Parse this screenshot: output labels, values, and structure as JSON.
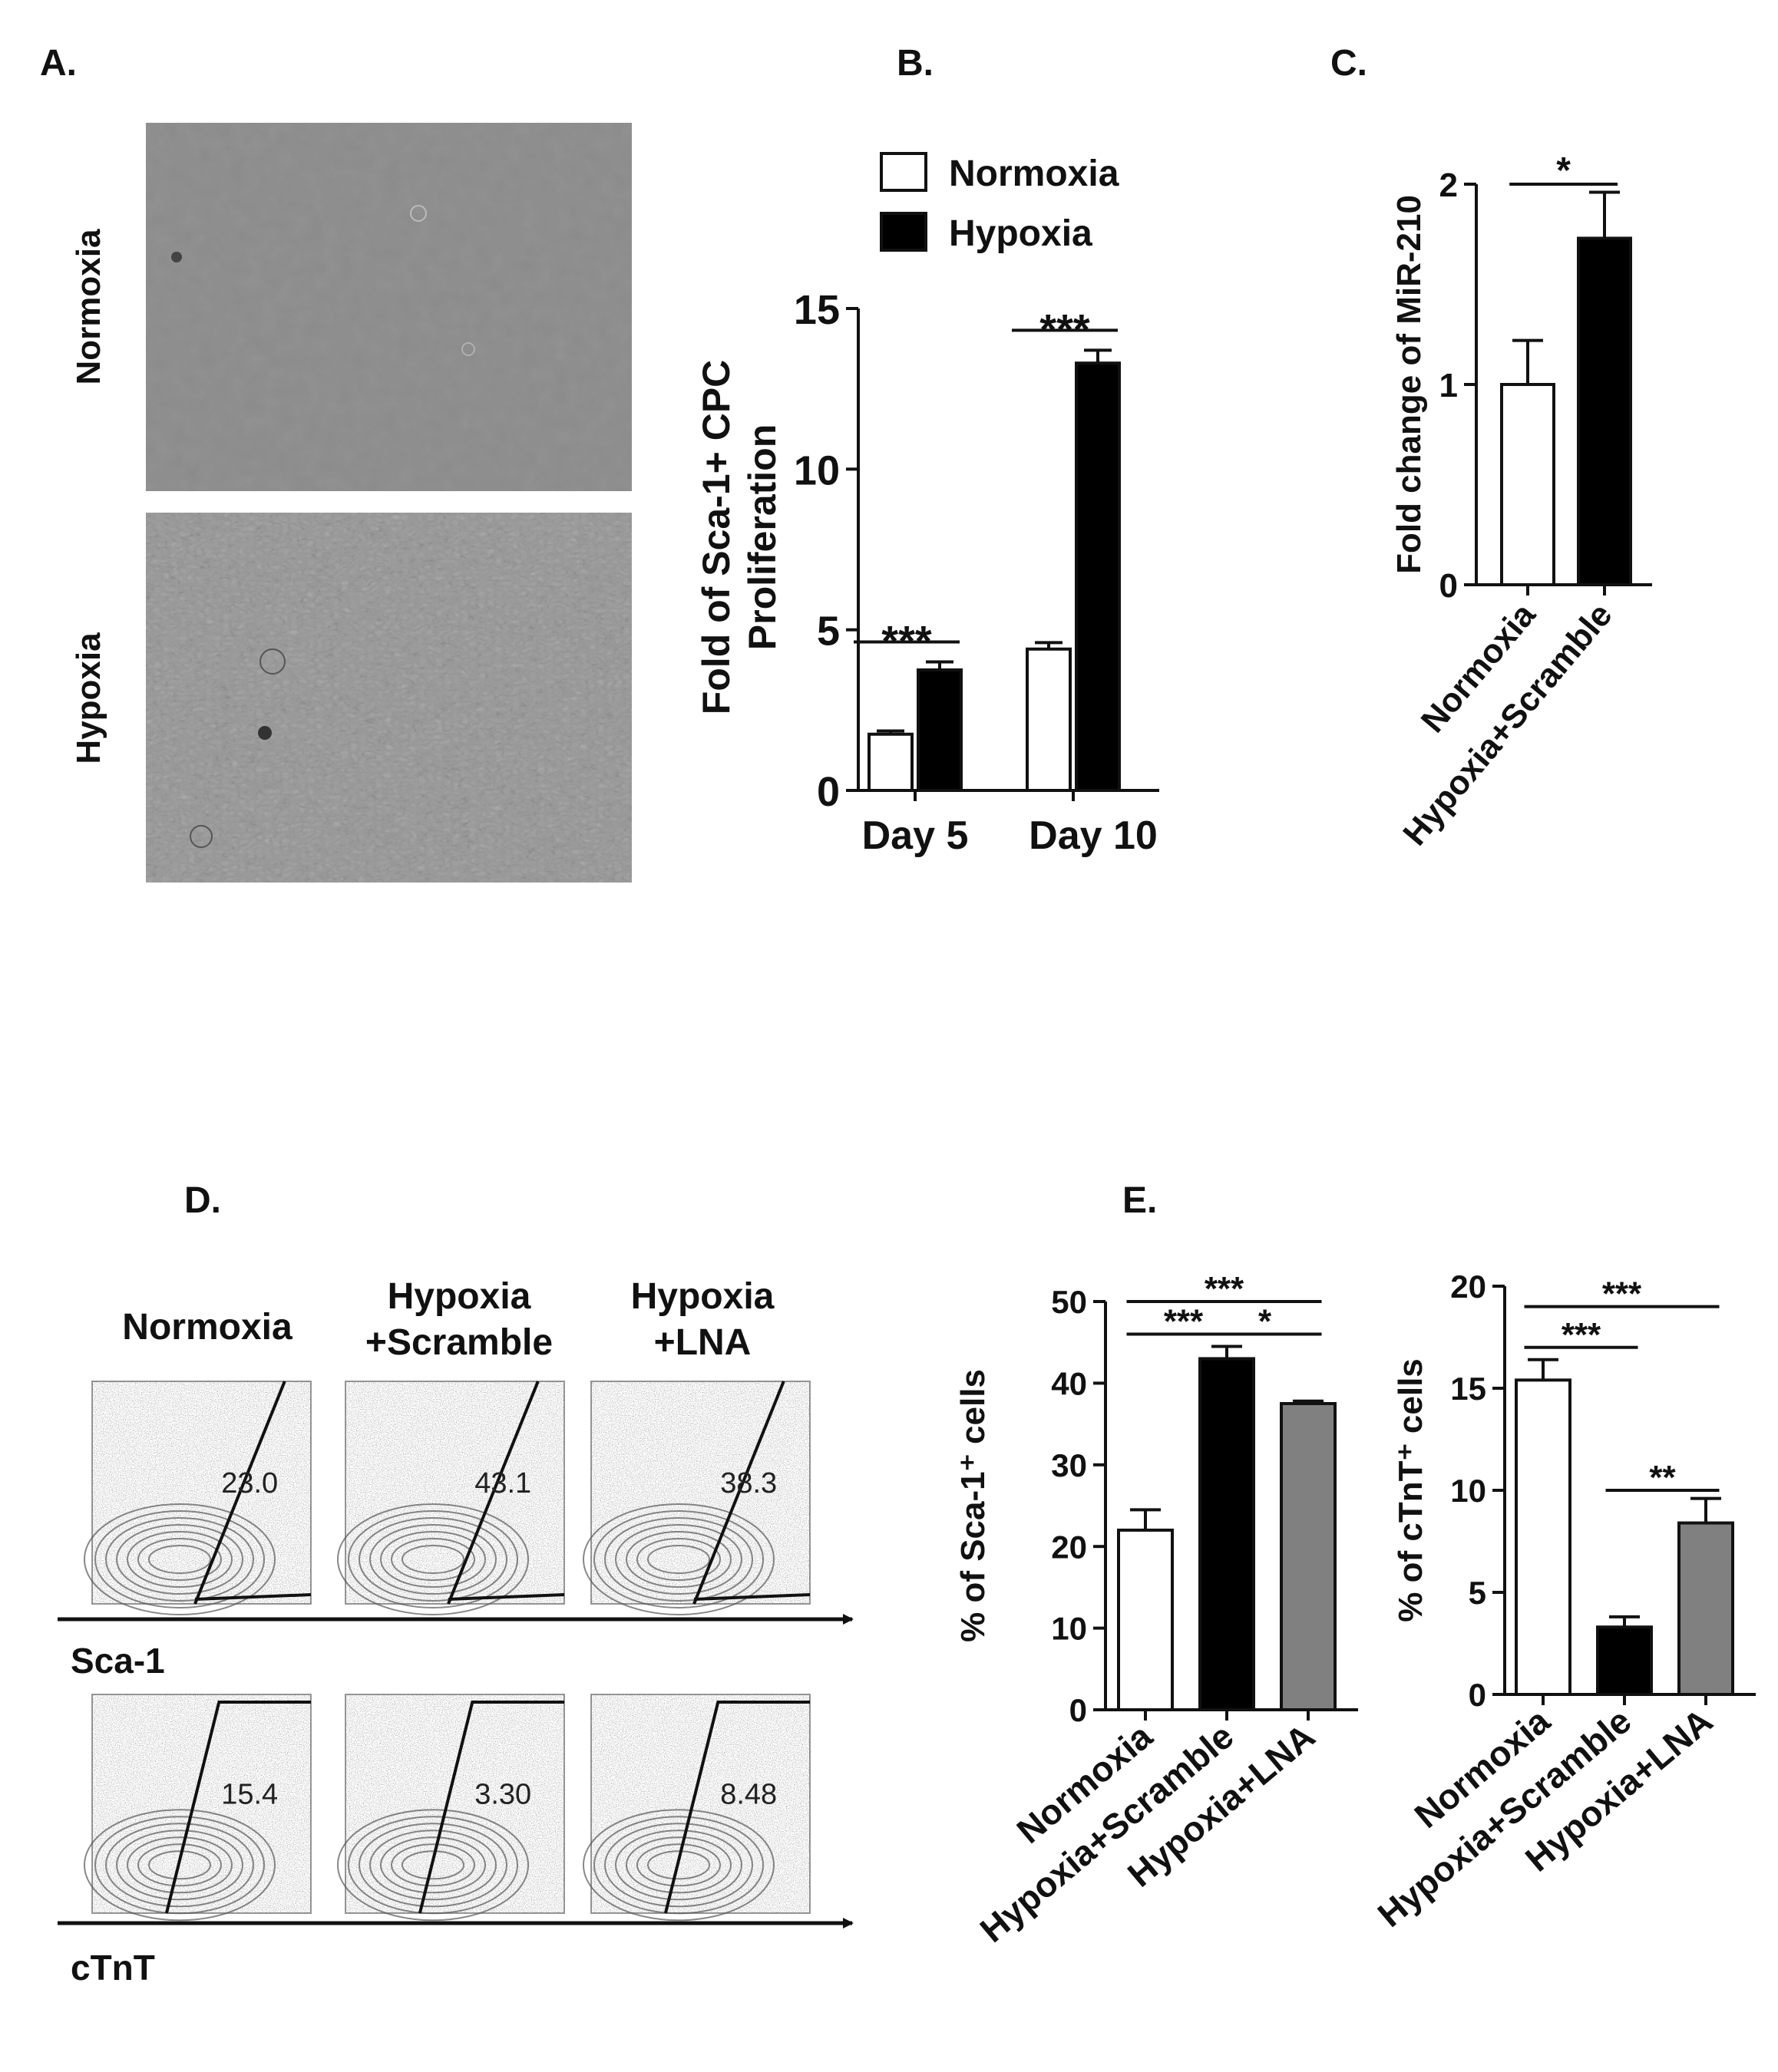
{
  "panels": {
    "a": {
      "label": "A.",
      "rows": [
        "Normoxia",
        "Hypoxia"
      ]
    },
    "b": {
      "label": "B."
    },
    "c": {
      "label": "C."
    },
    "d": {
      "label": "D.",
      "columns": [
        "Normoxia",
        "Hypoxia\n+Scramble",
        "Hypoxia\n+LNA"
      ],
      "markers": [
        "Sca-1",
        "cTnT"
      ],
      "gates": {
        "sca1": [
          "23.0",
          "43.1",
          "38.3"
        ],
        "ctnt": [
          "15.4",
          "3.30",
          "8.48"
        ]
      }
    },
    "e": {
      "label": "E."
    }
  },
  "chart_data": [
    {
      "id": "b",
      "type": "bar",
      "ylabel": "Fold of Sca-1+ CPC\nProliferation",
      "categories": [
        "Day 5",
        "Day 10"
      ],
      "yticks": [
        0,
        5,
        10,
        15
      ],
      "ylim": [
        0,
        15
      ],
      "legend_position": "top",
      "series": [
        {
          "name": "Normoxia",
          "fill": "#ffffff",
          "values": [
            1.75,
            4.4
          ],
          "errors": [
            0.1,
            0.2
          ]
        },
        {
          "name": "Hypoxia",
          "fill": "#000000",
          "values": [
            3.75,
            13.3
          ],
          "errors": [
            0.25,
            0.4
          ]
        }
      ],
      "significance": [
        {
          "text": "***",
          "group": 0
        },
        {
          "text": "***",
          "group": 1
        }
      ]
    },
    {
      "id": "c",
      "type": "bar",
      "ylabel": "Fold change of MiR-210",
      "categories": [
        "Normoxia",
        "Hypoxia+Scramble"
      ],
      "values": [
        1.0,
        1.73
      ],
      "errors": [
        0.22,
        0.23
      ],
      "fills": [
        "#ffffff",
        "#000000"
      ],
      "yticks": [
        0,
        1,
        2
      ],
      "ylim": [
        0,
        2
      ],
      "significance": [
        {
          "text": "*",
          "from": 0,
          "to": 1,
          "y": 2.0
        }
      ]
    },
    {
      "id": "e1",
      "type": "bar",
      "ylabel": "% of Sca-1⁺ cells",
      "categories": [
        "Normoxia",
        "Hypoxia+Scramble",
        "Hypoxia+LNA"
      ],
      "values": [
        22.0,
        43.0,
        37.5
      ],
      "errors": [
        2.5,
        1.5,
        0.3
      ],
      "fills": [
        "#ffffff",
        "#000000",
        "#808080"
      ],
      "yticks": [
        0,
        10,
        20,
        30,
        40,
        50
      ],
      "ylim": [
        0,
        50
      ],
      "significance": [
        {
          "text": "***",
          "from": 0,
          "to": 2,
          "y": 50
        },
        {
          "text": "***",
          "from": 0,
          "to": 1,
          "y": 46
        },
        {
          "text": "*",
          "from": 1,
          "to": 2,
          "y": 46
        }
      ]
    },
    {
      "id": "e2",
      "type": "bar",
      "ylabel": "% of cTnT⁺ cells",
      "categories": [
        "Normoxia",
        "Hypoxia+Scramble",
        "Hypoxia+LNA"
      ],
      "values": [
        15.4,
        3.3,
        8.4
      ],
      "errors": [
        1.0,
        0.5,
        1.2
      ],
      "fills": [
        "#ffffff",
        "#000000",
        "#808080"
      ],
      "yticks": [
        0,
        5,
        10,
        15,
        20
      ],
      "ylim": [
        0,
        20
      ],
      "significance": [
        {
          "text": "***",
          "from": 0,
          "to": 2,
          "y": 19
        },
        {
          "text": "***",
          "from": 0,
          "to": 1,
          "y": 17
        },
        {
          "text": "**",
          "from": 1,
          "to": 2,
          "y": 10
        }
      ]
    }
  ]
}
